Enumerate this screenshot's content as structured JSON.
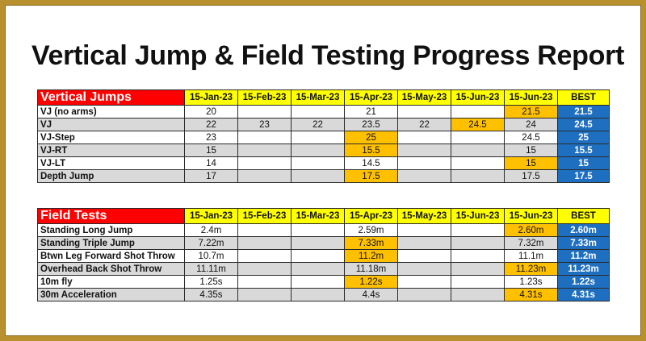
{
  "title": "Vertical Jump & Field Testing Progress Report",
  "colors": {
    "section_header": "#ff0000",
    "date_header": "#ffff00",
    "highlight": "#ffc000",
    "best": "#1f6fc0",
    "shaded_row": "#d9d9d9",
    "frame": "#b8902e"
  },
  "vertical": {
    "section_label": "Vertical Jumps",
    "dates": [
      "15-Jan-23",
      "15-Feb-23",
      "15-Mar-23",
      "15-Apr-23",
      "15-May-23",
      "15-Jun-23",
      "15-Jun-23"
    ],
    "best_label": "BEST",
    "rows": [
      {
        "label": "VJ (no arms)",
        "cells": [
          "20",
          "",
          "",
          "21",
          "",
          "",
          "21.5"
        ],
        "best": "21.5"
      },
      {
        "label": "VJ",
        "cells": [
          "22",
          "23",
          "22",
          "23.5",
          "22",
          "24.5",
          "24"
        ],
        "best": "24.5"
      },
      {
        "label": "VJ-Step",
        "cells": [
          "23",
          "",
          "",
          "25",
          "",
          "",
          "24.5"
        ],
        "best": "25"
      },
      {
        "label": "VJ-RT",
        "cells": [
          "15",
          "",
          "",
          "15.5",
          "",
          "",
          "15"
        ],
        "best": "15.5"
      },
      {
        "label": "VJ-LT",
        "cells": [
          "14",
          "",
          "",
          "14.5",
          "",
          "",
          "15"
        ],
        "best": "15"
      },
      {
        "label": "Depth Jump",
        "cells": [
          "17",
          "",
          "",
          "17.5",
          "",
          "",
          "17.5"
        ],
        "best": "17.5"
      }
    ]
  },
  "field": {
    "section_label": "Field Tests",
    "dates": [
      "15-Jan-23",
      "15-Feb-23",
      "15-Mar-23",
      "15-Apr-23",
      "15-May-23",
      "15-Jun-23",
      "15-Jun-23"
    ],
    "best_label": "BEST",
    "rows": [
      {
        "label": "Standing Long Jump",
        "cells": [
          "2.4m",
          "",
          "",
          "2.59m",
          "",
          "",
          "2.60m"
        ],
        "best": "2.60m"
      },
      {
        "label": "Standing Triple Jump",
        "cells": [
          "7.22m",
          "",
          "",
          "7.33m",
          "",
          "",
          "7.32m"
        ],
        "best": "7.33m"
      },
      {
        "label": "Btwn Leg Forward Shot Throw",
        "cells": [
          "10.7m",
          "",
          "",
          "11.2m",
          "",
          "",
          "11.1m"
        ],
        "best": "11.2m"
      },
      {
        "label": "Overhead Back Shot Throw",
        "cells": [
          "11.11m",
          "",
          "",
          "11.18m",
          "",
          "",
          "11.23m"
        ],
        "best": "11.23m"
      },
      {
        "label": "10m fly",
        "cells": [
          "1.25s",
          "",
          "",
          "1.22s",
          "",
          "",
          "1.23s"
        ],
        "best": "1.22s"
      },
      {
        "label": "30m Acceleration",
        "cells": [
          "4.35s",
          "",
          "",
          "4.4s",
          "",
          "",
          "4.31s"
        ],
        "best": "4.31s"
      }
    ]
  }
}
